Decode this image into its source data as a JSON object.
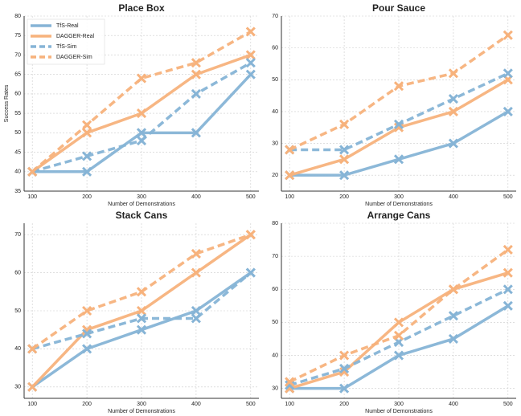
{
  "chart_data": [
    {
      "type": "line",
      "title": "Place Box",
      "xlabel": "Number of Demonstrations",
      "ylabel": "Success Rates",
      "x": [
        100,
        200,
        300,
        400,
        500
      ],
      "xlim": [
        85,
        515
      ],
      "xticks": [
        100,
        200,
        300,
        400,
        500
      ],
      "ylim": [
        35,
        80
      ],
      "yticks": [
        35,
        40,
        45,
        50,
        55,
        60,
        65,
        70,
        75,
        80
      ],
      "grid": true,
      "legend": "upper left",
      "series": [
        {
          "name": "TfS-Real",
          "color": "#86b4d6",
          "dashed": false,
          "values": [
            40,
            40,
            50,
            50,
            65
          ]
        },
        {
          "name": "DAGGER-Real",
          "color": "#f7b27c",
          "dashed": false,
          "values": [
            40,
            50,
            55,
            65,
            70
          ]
        },
        {
          "name": "TfS-Sim",
          "color": "#86b4d6",
          "dashed": true,
          "values": [
            40,
            44,
            48,
            60,
            68
          ]
        },
        {
          "name": "DAGGER-Sim",
          "color": "#f7b27c",
          "dashed": true,
          "values": [
            40,
            52,
            64,
            68,
            76
          ]
        }
      ]
    },
    {
      "type": "line",
      "title": "Pour Sauce",
      "xlabel": "Number of Demonstrations",
      "x": [
        100,
        200,
        300,
        400,
        500
      ],
      "xlim": [
        85,
        515
      ],
      "xticks": [
        100,
        200,
        300,
        400,
        500
      ],
      "ylim": [
        15,
        70
      ],
      "yticks": [
        20,
        30,
        40,
        50,
        60,
        70
      ],
      "grid": true,
      "series": [
        {
          "color": "#86b4d6",
          "dashed": false,
          "values": [
            20,
            20,
            25,
            30,
            40
          ]
        },
        {
          "color": "#f7b27c",
          "dashed": false,
          "values": [
            20,
            25,
            35,
            40,
            50
          ]
        },
        {
          "color": "#86b4d6",
          "dashed": true,
          "values": [
            28,
            28,
            36,
            44,
            52
          ]
        },
        {
          "color": "#f7b27c",
          "dashed": true,
          "values": [
            28,
            36,
            48,
            52,
            64
          ]
        }
      ]
    },
    {
      "type": "line",
      "title": "Stack Cans",
      "xlabel": "Number of Demonstrations",
      "x": [
        100,
        200,
        300,
        400,
        500
      ],
      "xlim": [
        85,
        515
      ],
      "xticks": [
        100,
        200,
        300,
        400,
        500
      ],
      "ylim": [
        27,
        73
      ],
      "yticks": [
        30,
        40,
        50,
        60,
        70
      ],
      "grid": true,
      "series": [
        {
          "color": "#86b4d6",
          "dashed": false,
          "values": [
            30,
            40,
            45,
            50,
            60
          ]
        },
        {
          "color": "#f7b27c",
          "dashed": false,
          "values": [
            30,
            45,
            50,
            60,
            70
          ]
        },
        {
          "color": "#86b4d6",
          "dashed": true,
          "values": [
            40,
            44,
            48,
            48,
            60
          ]
        },
        {
          "color": "#f7b27c",
          "dashed": true,
          "values": [
            40,
            50,
            55,
            65,
            70
          ]
        }
      ]
    },
    {
      "type": "line",
      "title": "Arrange Cans",
      "xlabel": "Number of Demonstrations",
      "x": [
        100,
        200,
        300,
        400,
        500
      ],
      "xlim": [
        85,
        515
      ],
      "xticks": [
        100,
        200,
        300,
        400,
        500
      ],
      "ylim": [
        27,
        80
      ],
      "yticks": [
        30,
        40,
        50,
        60,
        70,
        80
      ],
      "grid": true,
      "series": [
        {
          "color": "#86b4d6",
          "dashed": false,
          "values": [
            30,
            30,
            40,
            45,
            55
          ]
        },
        {
          "color": "#f7b27c",
          "dashed": false,
          "values": [
            30,
            35,
            50,
            60,
            65
          ]
        },
        {
          "color": "#86b4d6",
          "dashed": true,
          "values": [
            31,
            36,
            44,
            52,
            60
          ]
        },
        {
          "color": "#f7b27c",
          "dashed": true,
          "values": [
            32,
            40,
            46,
            60,
            72
          ]
        }
      ]
    }
  ]
}
